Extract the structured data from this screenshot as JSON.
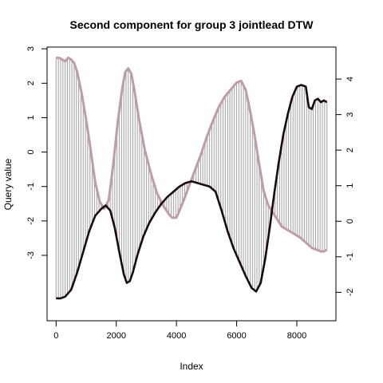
{
  "chart_data": {
    "type": "line",
    "title": "Second component for group 3 jointlead DTW",
    "xlabel": "Index",
    "ylabel": "Query value",
    "xlim": [
      -300,
      9300
    ],
    "ylim_left": [
      -4.9,
      3.05
    ],
    "ylim_right": [
      -2.8,
      4.9
    ],
    "x_ticks": [
      0,
      2000,
      4000,
      6000,
      8000
    ],
    "y_ticks_left": [
      -3,
      -2,
      -1,
      0,
      1,
      2,
      3
    ],
    "y_ticks_right": [
      -2,
      -1,
      0,
      1,
      2,
      3,
      4
    ],
    "grid": false,
    "legend": "none",
    "colors": {
      "query": "#1a0a0a",
      "reference": "#c09ca4",
      "alignment": "#a8a8a8",
      "axis": "#000000",
      "background": "#ffffff"
    },
    "query_series": {
      "name": "query",
      "axis": "left",
      "x": [
        0,
        150,
        300,
        500,
        700,
        900,
        1100,
        1300,
        1500,
        1650,
        1800,
        1950,
        2100,
        2250,
        2350,
        2450,
        2550,
        2700,
        2900,
        3100,
        3300,
        3500,
        3700,
        3900,
        4100,
        4300,
        4500,
        4700,
        4900,
        5100,
        5300,
        5500,
        5700,
        5900,
        6100,
        6300,
        6500,
        6650,
        6800,
        6950,
        7100,
        7250,
        7400,
        7550,
        7700,
        7850,
        8000,
        8150,
        8300,
        8400,
        8500,
        8600,
        8700,
        8800,
        8900,
        9000
      ],
      "y": [
        -4.25,
        -4.25,
        -4.2,
        -4.0,
        -3.5,
        -2.9,
        -2.3,
        -1.85,
        -1.65,
        -1.55,
        -1.7,
        -2.2,
        -2.9,
        -3.55,
        -3.8,
        -3.75,
        -3.5,
        -3.0,
        -2.45,
        -2.05,
        -1.75,
        -1.5,
        -1.3,
        -1.15,
        -1.0,
        -0.9,
        -0.85,
        -0.9,
        -0.95,
        -1.0,
        -1.15,
        -1.7,
        -2.3,
        -2.8,
        -3.2,
        -3.6,
        -3.95,
        -4.05,
        -3.8,
        -3.1,
        -2.2,
        -1.2,
        -0.3,
        0.5,
        1.1,
        1.6,
        1.9,
        1.95,
        1.9,
        1.3,
        1.25,
        1.5,
        1.55,
        1.45,
        1.5,
        1.45
      ]
    },
    "reference_series": {
      "name": "reference",
      "axis": "right",
      "x": [
        0,
        100,
        200,
        300,
        400,
        500,
        600,
        700,
        850,
        1000,
        1150,
        1300,
        1450,
        1600,
        1750,
        1900,
        2050,
        2200,
        2300,
        2400,
        2500,
        2600,
        2750,
        2950,
        3150,
        3350,
        3550,
        3750,
        3850,
        4000,
        4200,
        4400,
        4600,
        4800,
        5000,
        5200,
        5400,
        5600,
        5800,
        6000,
        6150,
        6300,
        6450,
        6600,
        6750,
        6900,
        7050,
        7200,
        7350,
        7500,
        7700,
        7900,
        8100,
        8300,
        8500,
        8650,
        8800,
        8900,
        9000
      ],
      "y": [
        4.6,
        4.6,
        4.55,
        4.5,
        4.6,
        4.55,
        4.45,
        4.2,
        3.6,
        2.85,
        2.0,
        1.1,
        0.55,
        0.35,
        0.6,
        1.6,
        2.8,
        3.75,
        4.2,
        4.3,
        4.15,
        3.7,
        2.9,
        2.0,
        1.35,
        0.8,
        0.45,
        0.2,
        0.1,
        0.1,
        0.5,
        0.95,
        1.4,
        1.85,
        2.35,
        2.8,
        3.2,
        3.5,
        3.7,
        3.9,
        3.95,
        3.7,
        3.1,
        2.4,
        1.6,
        0.85,
        0.45,
        0.25,
        0.05,
        -0.15,
        -0.25,
        -0.35,
        -0.45,
        -0.6,
        -0.75,
        -0.8,
        -0.85,
        -0.85,
        -0.8
      ]
    }
  }
}
